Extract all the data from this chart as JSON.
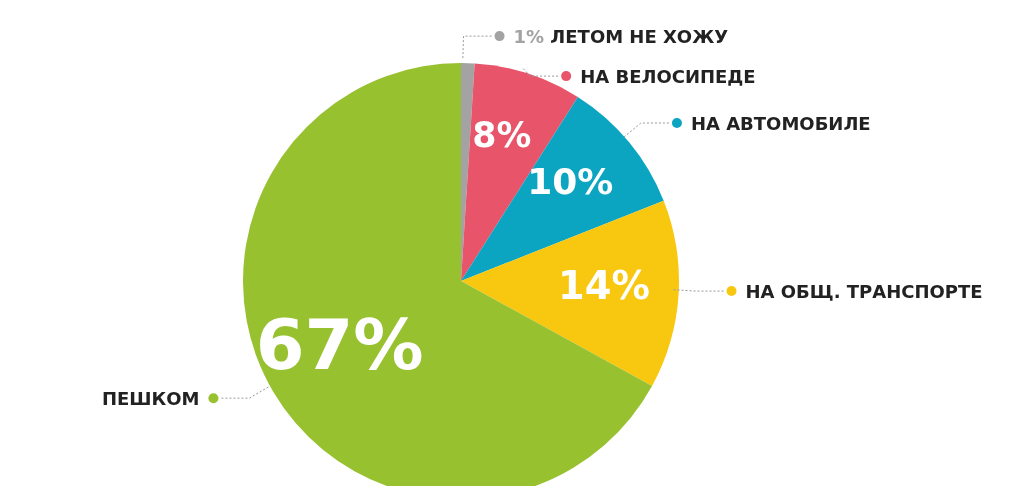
{
  "chart_data": {
    "type": "pie",
    "categories": [
      "ЛЕТОМ НЕ ХОЖУ",
      "НА ВЕЛОСИПЕДЕ",
      "НА АВТОМОБИЛЕ",
      "НА ОБЩ. ТРАНСПОРТЕ",
      "ПЕШКОМ"
    ],
    "values": [
      1,
      8,
      10,
      14,
      67
    ],
    "colors": [
      "#a3a3a3",
      "#e8546a",
      "#0ba5c1",
      "#f8c70f",
      "#97c12f"
    ],
    "value_labels": [
      "1%",
      "8%",
      "10%",
      "14%",
      "67%"
    ],
    "legend": "right"
  }
}
